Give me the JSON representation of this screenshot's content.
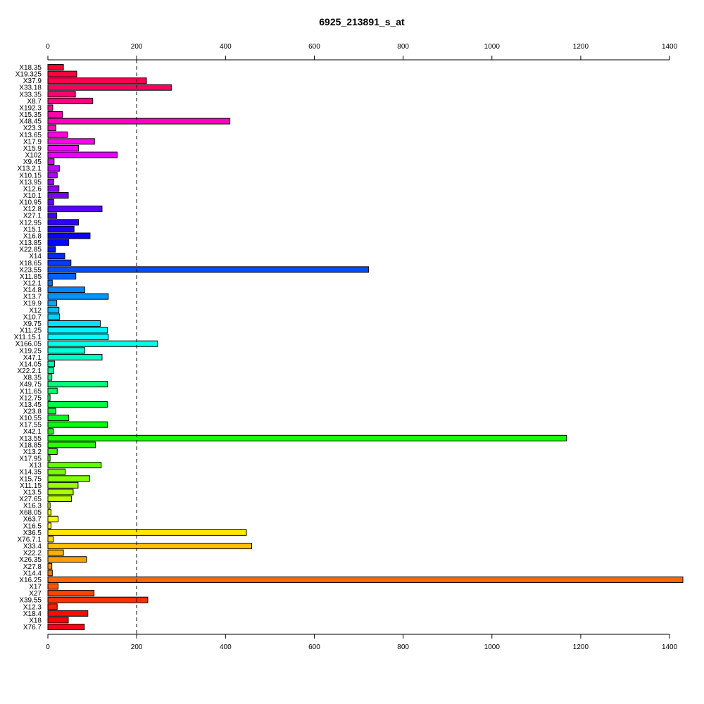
{
  "chart_data": {
    "type": "bar",
    "orientation": "horizontal",
    "title": "6925_213891_s_at",
    "xlabel": "",
    "ylabel": "",
    "xlim": [
      0,
      1430
    ],
    "x_ticks": [
      0,
      200,
      400,
      600,
      800,
      1000,
      1200,
      1400
    ],
    "x_tick_labels": [
      "0",
      "200",
      "400",
      "600",
      "800",
      "1000",
      "1200",
      "1400"
    ],
    "axes": [
      "top",
      "bottom"
    ],
    "reference_line": 200,
    "grid": false,
    "legend": "none",
    "color_scheme": "rainbow",
    "categories": [
      "X18.35",
      "X19.325",
      "X37.9",
      "X33.18",
      "X33.35",
      "X8.7",
      "X192.3",
      "X15.35",
      "X48.45",
      "X23.3",
      "X13.65",
      "X17.9",
      "X15.9",
      "X102",
      "X9.45",
      "X13.2.1",
      "X10.15",
      "X13.95",
      "X12.6",
      "X10.1",
      "X10.95",
      "X12.8",
      "X27.1",
      "X12.95",
      "X15.1",
      "X16.8",
      "X13.85",
      "X22.85",
      "X14",
      "X18.65",
      "X23.55",
      "X11.85",
      "X12.1",
      "X14.8",
      "X13.7",
      "X19.9",
      "X12",
      "X10.7",
      "X9.75",
      "X11.25",
      "X11.15.1",
      "X166.05",
      "X19.25",
      "X47.1",
      "X14.05",
      "X22.2.1",
      "X8.35",
      "X49.75",
      "X11.65",
      "X12.75",
      "X13.45",
      "X23.8",
      "X10.55",
      "X17.55",
      "X42.1",
      "X13.55",
      "X18.85",
      "X13.2",
      "X17.95",
      "X13",
      "X14.35",
      "X15.75",
      "X11.15",
      "X13.5",
      "X27.65",
      "X16.3",
      "X68.05",
      "X63.7",
      "X16.5",
      "X36.5",
      "X76.7.1",
      "X33.4",
      "X22.2",
      "X26.35",
      "X27.8",
      "X14.4",
      "X16.25",
      "X17",
      "X27",
      "X39.55",
      "X12.3",
      "X18.4",
      "X18",
      "X76.7"
    ],
    "values": [
      35,
      65,
      222,
      278,
      62,
      101,
      11,
      33,
      410,
      18,
      44,
      105,
      69,
      156,
      14,
      26,
      21,
      13,
      25,
      46,
      13,
      122,
      20,
      69,
      59,
      95,
      47,
      17,
      38,
      52,
      722,
      63,
      10,
      83,
      136,
      20,
      25,
      26,
      118,
      134,
      136,
      247,
      83,
      122,
      15,
      13,
      9,
      134,
      21,
      5,
      134,
      18,
      47,
      134,
      12,
      1168,
      107,
      21,
      5,
      120,
      39,
      94,
      68,
      57,
      53,
      5,
      7,
      23,
      7,
      447,
      12,
      459,
      35,
      87,
      9,
      10,
      1430,
      23,
      104,
      225,
      21,
      90,
      46,
      82
    ]
  }
}
